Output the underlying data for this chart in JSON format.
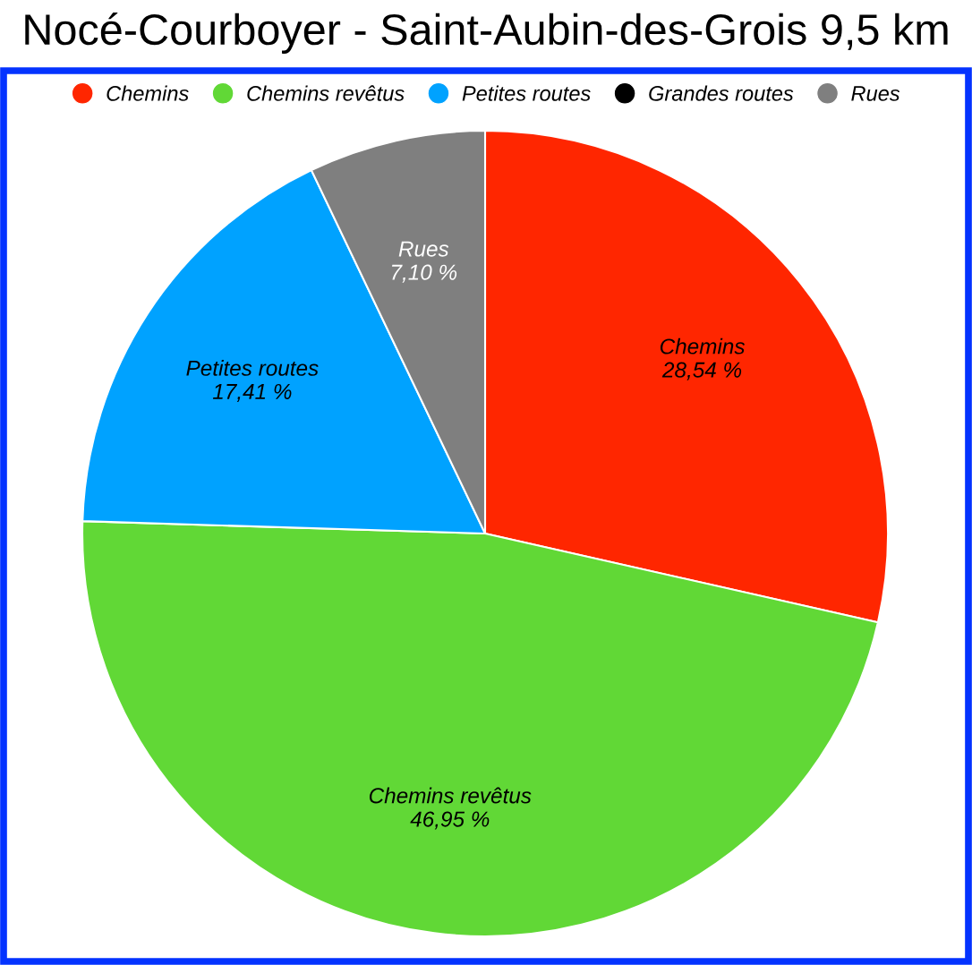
{
  "chart_data": {
    "type": "pie",
    "title": "Nocé-Courboyer - Saint-Aubin-des-Grois 9,5 km",
    "categories": [
      "Chemins",
      "Chemins revêtus",
      "Petites routes",
      "Grandes routes",
      "Rues"
    ],
    "values": [
      28.54,
      46.95,
      17.41,
      0,
      7.1
    ],
    "colors": [
      "#ff2600",
      "#61d836",
      "#00a2ff",
      "#000000",
      "#7f7f7f"
    ],
    "value_labels": [
      "28,54 %",
      "46,95 %",
      "17,41 %",
      null,
      "7,10 %"
    ],
    "legend": "top"
  }
}
